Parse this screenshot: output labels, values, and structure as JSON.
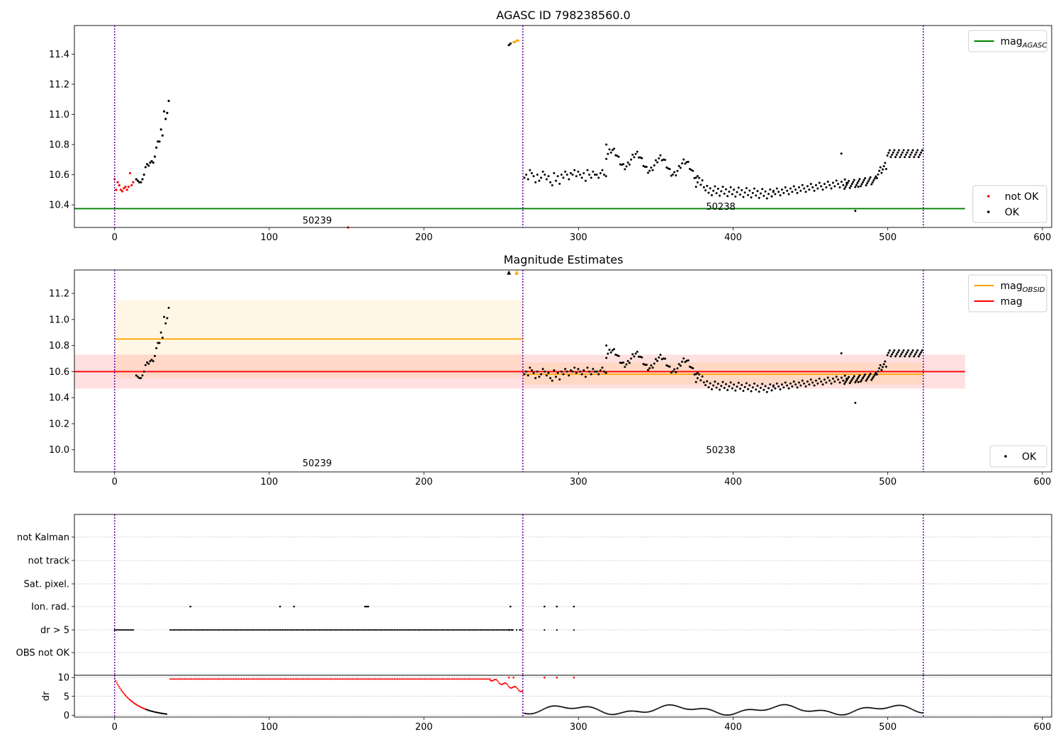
{
  "chart_data": [
    {
      "type": "scatter",
      "title": "AGASC ID 798238560.0",
      "xlim": [
        -26,
        606
      ],
      "ylim": [
        10.25,
        11.59
      ],
      "xticks": [
        0,
        100,
        200,
        300,
        400,
        500,
        600
      ],
      "yticks": [
        10.4,
        10.6,
        10.8,
        11.0,
        11.2,
        11.4
      ],
      "vlines": [
        0,
        264,
        523
      ],
      "hlines": [
        {
          "name": "mag_AGASC",
          "y": 10.375,
          "x0": -26,
          "x1": 550,
          "color": "#008000"
        }
      ],
      "annotations": [
        {
          "text": "50239",
          "x": 131,
          "y": 10.3
        },
        {
          "text": "50238",
          "x": 392,
          "y": 10.39
        }
      ],
      "legends": [
        {
          "position": "upper-right",
          "items": [
            {
              "label": "mag",
              "sub": "AGASC",
              "kind": "line",
              "color": "#008000"
            }
          ]
        },
        {
          "position": "lower-right",
          "items": [
            {
              "label": "not OK",
              "kind": "dot",
              "color": "#ff0000"
            },
            {
              "label": "OK",
              "kind": "dot",
              "color": "#000000"
            }
          ]
        }
      ],
      "series": [
        {
          "name": "not OK",
          "color": "#ff0000",
          "x": [
            0,
            1,
            2,
            3,
            4,
            5,
            6,
            7,
            8,
            9,
            10,
            11,
            12,
            151
          ],
          "y": [
            10.57,
            10.5,
            10.55,
            10.53,
            10.5,
            10.49,
            10.51,
            10.52,
            10.5,
            10.52,
            10.61,
            10.53,
            10.55,
            10.25
          ]
        },
        {
          "name": "not OK (orange)",
          "color": "#ffa500",
          "x": [
            258,
            259,
            260,
            261
          ],
          "y": [
            11.48,
            11.48,
            11.49,
            11.49
          ]
        },
        {
          "name": "OK",
          "color": "#000000",
          "x": [
            14,
            15,
            16,
            17,
            18,
            19,
            20,
            21,
            22,
            23,
            24,
            25,
            26,
            27,
            28,
            29,
            30,
            31,
            32,
            33,
            34,
            35,
            255,
            256
          ],
          "y": [
            10.57,
            10.56,
            10.55,
            10.55,
            10.57,
            10.6,
            10.65,
            10.67,
            10.66,
            10.68,
            10.69,
            10.68,
            10.72,
            10.78,
            10.82,
            10.82,
            10.9,
            10.86,
            11.02,
            10.97,
            11.01,
            11.09,
            11.46,
            11.47
          ]
        }
      ]
    },
    {
      "type": "scatter",
      "title": "Magnitude Estimates",
      "xlim": [
        -26,
        606
      ],
      "ylim": [
        9.83,
        11.38
      ],
      "xticks": [
        0,
        100,
        200,
        300,
        400,
        500,
        600
      ],
      "yticks": [
        10.0,
        10.2,
        10.4,
        10.6,
        10.8,
        11.0,
        11.2
      ],
      "vlines": [
        0,
        264,
        523
      ],
      "bands": [
        {
          "name": "mag_OBSID 50239",
          "x0": 0,
          "x1": 264,
          "ylo": 10.55,
          "yhi": 11.15,
          "color": "#ffa500",
          "opacity": 0.1
        },
        {
          "name": "mag",
          "x0": -26,
          "x1": 550,
          "ylo": 10.47,
          "yhi": 10.73,
          "color": "#ff0000",
          "opacity": 0.12
        },
        {
          "name": "mag_OBSID 50238",
          "x0": 264,
          "x1": 523,
          "ylo": 10.5,
          "yhi": 10.67,
          "color": "#ffa500",
          "opacity": 0.12
        }
      ],
      "hlines": [
        {
          "name": "mag_OBSID",
          "y": 10.85,
          "x0": 0,
          "x1": 264,
          "color": "#ffa500"
        },
        {
          "name": "mag_OBSID",
          "y": 10.58,
          "x0": 264,
          "x1": 523,
          "color": "#ffa500"
        },
        {
          "name": "mag",
          "y": 10.6,
          "x0": -26,
          "x1": 550,
          "color": "#ff0000"
        }
      ],
      "annotations": [
        {
          "text": "50239",
          "x": 131,
          "y": 9.9
        },
        {
          "text": "50238",
          "x": 392,
          "y": 10.0
        }
      ],
      "legends": [
        {
          "position": "upper-right",
          "items": [
            {
              "label": "mag",
              "sub": "OBSID",
              "kind": "line",
              "color": "#ffa500"
            },
            {
              "label": "mag",
              "sub": "",
              "kind": "line",
              "color": "#ff0000"
            }
          ]
        },
        {
          "position": "lower-right",
          "items": [
            {
              "label": "OK",
              "kind": "dot",
              "color": "#000000"
            }
          ]
        }
      ],
      "markers": [
        {
          "x": 255,
          "y": 11.36,
          "color": "#000000"
        },
        {
          "x": 260,
          "y": 11.36,
          "color": "#ffa500"
        }
      ],
      "series": [
        {
          "name": "OK",
          "color": "#000000",
          "x": [
            14,
            15,
            16,
            17,
            18,
            19,
            20,
            21,
            22,
            23,
            24,
            25,
            26,
            27,
            28,
            29,
            30,
            31,
            32,
            33,
            34,
            35
          ],
          "y": [
            10.57,
            10.56,
            10.55,
            10.55,
            10.57,
            10.6,
            10.65,
            10.67,
            10.66,
            10.68,
            10.69,
            10.68,
            10.72,
            10.78,
            10.82,
            10.82,
            10.9,
            10.86,
            11.02,
            10.97,
            11.01,
            11.09
          ]
        }
      ]
    },
    {
      "type": "scatter",
      "title": "",
      "xlim": [
        -26,
        606
      ],
      "ylim": [
        -0.5,
        10.6
      ],
      "xticks": [
        0,
        100,
        200,
        300,
        400,
        500,
        600
      ],
      "yticks": [
        0,
        5,
        10
      ],
      "ylabel": "dr",
      "vlines": [
        0,
        264,
        523
      ],
      "flag_labels": [
        "not Kalman",
        "not track",
        "Sat. pixel.",
        "Ion. rad.",
        "dr > 5",
        "OBS not OK"
      ],
      "ion_rad_x": [
        49,
        107,
        116,
        162,
        163,
        164,
        256,
        278,
        286,
        297
      ],
      "dr_gt5_extra_x": [
        0,
        1,
        2,
        3,
        4,
        5,
        6,
        7,
        8,
        9,
        10,
        11,
        12,
        255,
        257,
        260,
        262,
        263,
        278,
        286,
        297
      ],
      "dr_red_x": [
        255,
        258,
        278,
        286,
        297
      ],
      "dr_red_y": [
        10,
        10,
        10,
        10,
        10
      ]
    }
  ]
}
